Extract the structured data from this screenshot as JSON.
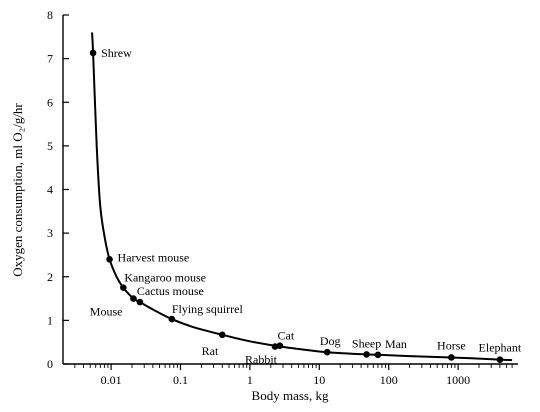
{
  "chart_data": {
    "type": "scatter",
    "title": "",
    "xlabel": "Body mass, kg",
    "ylabel": "Oxygen consumption, ml O₂/g/hr",
    "x_scale": "log",
    "xlim": [
      0.001,
      10000
    ],
    "ylim": [
      0,
      8
    ],
    "x_ticks": [
      0.01,
      0.1,
      1,
      10,
      100,
      1000
    ],
    "x_tick_labels": [
      "0.01",
      "0.1",
      "1",
      "10",
      "100",
      "1000"
    ],
    "y_ticks": [
      0,
      1,
      2,
      3,
      4,
      5,
      6,
      7,
      8
    ],
    "y_tick_labels": [
      "0",
      "1",
      "2",
      "3",
      "4",
      "5",
      "6",
      "7",
      "8"
    ],
    "grid": false,
    "legend": "none",
    "colors": {
      "ink": "#000000",
      "background": "#ffffff"
    },
    "points": [
      {
        "label": "Shrew",
        "x": 0.0055,
        "y": 7.13
      },
      {
        "label": "Harvest mouse",
        "x": 0.0095,
        "y": 2.4
      },
      {
        "label": "Kangaroo mouse",
        "x": 0.015,
        "y": 1.75
      },
      {
        "label": "Mouse",
        "x": 0.021,
        "y": 1.5
      },
      {
        "label": "Cactus mouse",
        "x": 0.026,
        "y": 1.42
      },
      {
        "label": "Flying squirrel",
        "x": 0.075,
        "y": 1.03
      },
      {
        "label": "Rat",
        "x": 0.4,
        "y": 0.67
      },
      {
        "label": "Rabbit",
        "x": 2.3,
        "y": 0.4
      },
      {
        "label": "Cat",
        "x": 2.7,
        "y": 0.42
      },
      {
        "label": "Dog",
        "x": 13,
        "y": 0.27
      },
      {
        "label": "Sheep",
        "x": 48,
        "y": 0.22
      },
      {
        "label": "Man",
        "x": 70,
        "y": 0.21
      },
      {
        "label": "Horse",
        "x": 800,
        "y": 0.15
      },
      {
        "label": "Elephant",
        "x": 4000,
        "y": 0.1
      }
    ],
    "curve": {
      "description_free_fit": true,
      "x": [
        0.0053,
        0.0055,
        0.0062,
        0.007,
        0.0082,
        0.0095,
        0.012,
        0.015,
        0.021,
        0.026,
        0.04,
        0.075,
        0.15,
        0.4,
        1,
        2.5,
        6,
        13,
        48,
        70,
        200,
        800,
        4000,
        6000
      ],
      "y": [
        7.6,
        7.13,
        5.0,
        3.6,
        2.85,
        2.4,
        2.0,
        1.75,
        1.5,
        1.42,
        1.25,
        1.03,
        0.85,
        0.67,
        0.52,
        0.41,
        0.33,
        0.27,
        0.22,
        0.21,
        0.18,
        0.15,
        0.1,
        0.09
      ]
    }
  }
}
